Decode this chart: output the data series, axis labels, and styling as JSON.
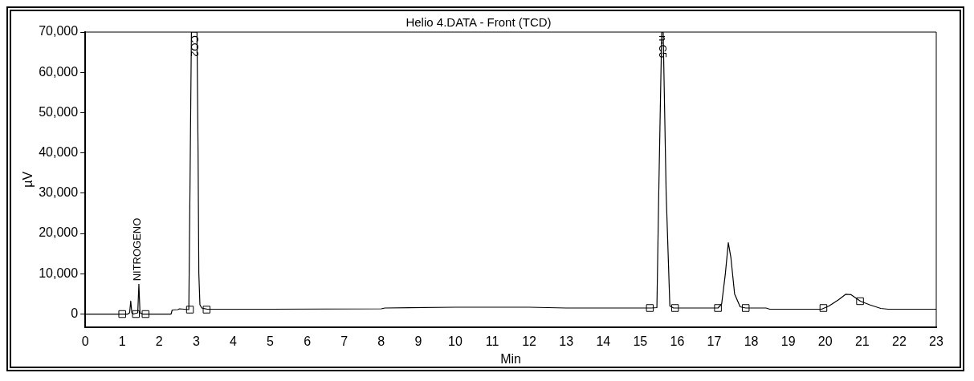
{
  "chart_data": {
    "type": "line",
    "title": "Helio 4.DATA - Front (TCD)",
    "xlabel": "Min",
    "ylabel": "µV",
    "xlim": [
      0,
      23
    ],
    "xticks": [
      0,
      1,
      2,
      3,
      4,
      5,
      6,
      7,
      8,
      9,
      10,
      11,
      12,
      13,
      14,
      15,
      16,
      17,
      18,
      19,
      20,
      21,
      22,
      23
    ],
    "ylim": [
      -3200,
      70000
    ],
    "yticks": [
      {
        "value": 0,
        "label": "0"
      },
      {
        "value": 10000,
        "label": "10,000"
      },
      {
        "value": 20000,
        "label": "20,000"
      },
      {
        "value": 30000,
        "label": "30,000"
      },
      {
        "value": 40000,
        "label": "40,000"
      },
      {
        "value": 50000,
        "label": "50,000"
      },
      {
        "value": 60000,
        "label": "60,000"
      },
      {
        "value": 70000,
        "label": "70,000"
      }
    ],
    "grid": false,
    "legend": false,
    "marker": "none",
    "line_style": "solid",
    "series": [
      {
        "type": "line",
        "color": "#000000",
        "x": [
          0,
          0.9,
          1.15,
          1.2,
          1.23,
          1.26,
          1.3,
          1.42,
          1.45,
          1.48,
          1.55,
          1.7,
          2.32,
          2.35,
          2.5,
          2.55,
          2.8,
          2.83,
          2.87,
          3.02,
          3.05,
          3.07,
          3.1,
          3.15,
          3.3,
          5,
          8,
          8.1,
          10,
          12,
          13,
          15,
          15.3,
          15.45,
          15.5,
          15.58,
          15.62,
          15.7,
          15.8,
          15.9,
          16.5,
          17.1,
          17.2,
          17.3,
          17.38,
          17.45,
          17.55,
          17.7,
          17.85,
          18.4,
          18.5,
          19.9,
          20.1,
          20.35,
          20.55,
          20.7,
          20.95,
          21.2,
          21.5,
          21.7,
          23
        ],
        "values": [
          0,
          0,
          0,
          300,
          3200,
          300,
          0,
          300,
          7400,
          300,
          0,
          0,
          0,
          1000,
          1100,
          1300,
          1100,
          30000,
          70000,
          70000,
          40000,
          10200,
          2300,
          1500,
          1200,
          1200,
          1300,
          1500,
          1700,
          1700,
          1500,
          1500,
          1500,
          1600,
          30000,
          70000,
          70000,
          30000,
          2000,
          1500,
          1500,
          1500,
          2500,
          10000,
          17700,
          14000,
          5000,
          1800,
          1500,
          1500,
          1200,
          1200,
          2000,
          3500,
          4900,
          4800,
          3200,
          2300,
          1400,
          1200,
          1200
        ]
      },
      {
        "type": "scatter",
        "color": "#000000",
        "marker": "square",
        "x": [
          1.0,
          1.37,
          1.63,
          2.83,
          3.28,
          15.26,
          15.94,
          17.1,
          17.85,
          19.95,
          20.94
        ],
        "values": [
          0,
          0,
          0,
          1100,
          1100,
          1500,
          1500,
          1500,
          1500,
          1500,
          3200
        ]
      }
    ],
    "annotations": [
      {
        "text": "NITROGENO",
        "x": 1.45,
        "y": 7400
      },
      {
        "text": "CO2",
        "x": 2.95,
        "y": 70000
      },
      {
        "text": "n-C5",
        "x": 15.6,
        "y": 70000
      }
    ]
  }
}
